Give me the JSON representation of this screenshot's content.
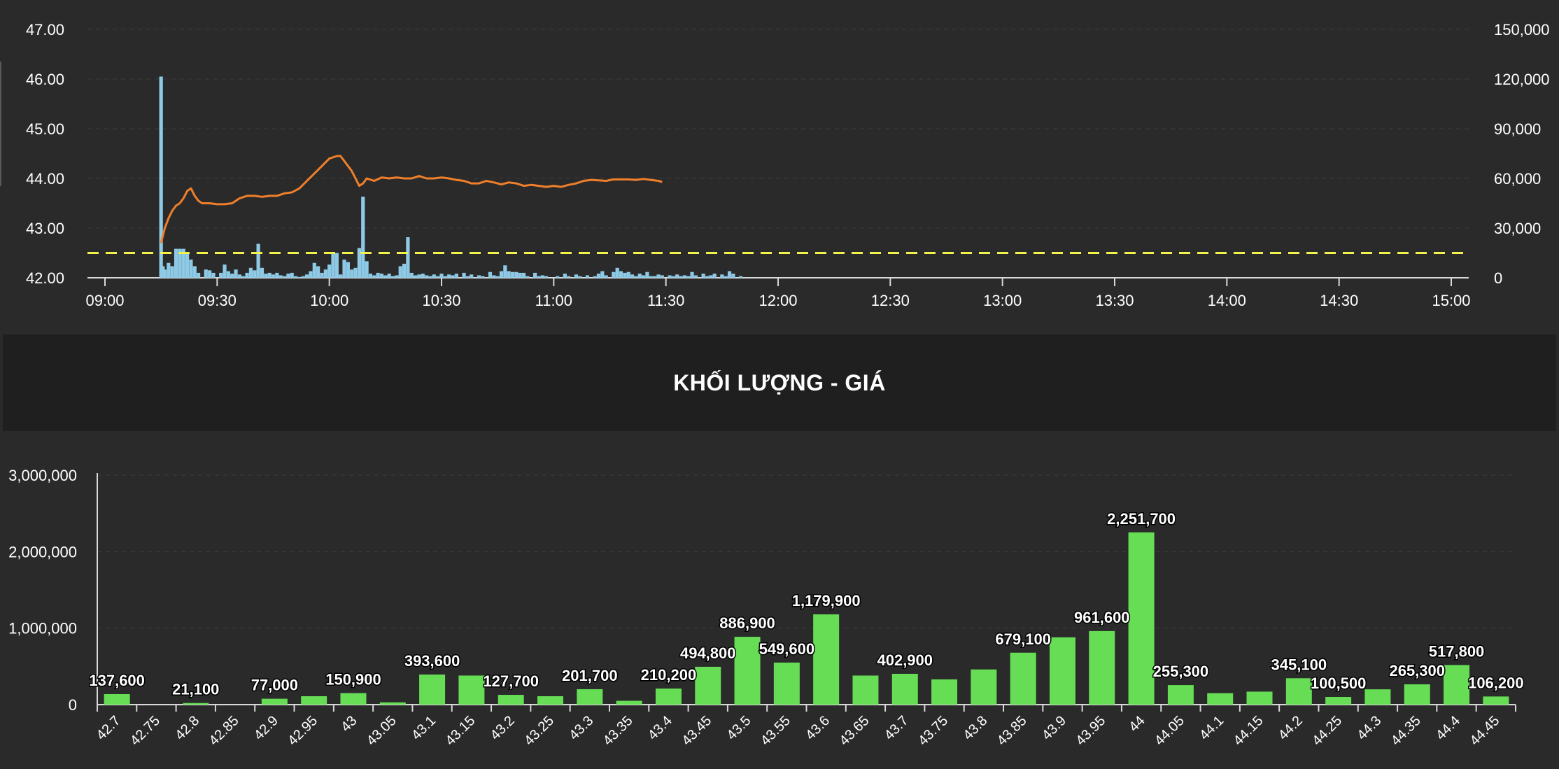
{
  "colors": {
    "background": "#2a2a2b",
    "band": "#1f1f20",
    "price_line": "#f07f2a",
    "volume_bar": "#8ecae6",
    "ref_line": "#f2f24a",
    "vp_bar": "#66dd55",
    "text": "#ffffff",
    "grid": "#3c3c3e"
  },
  "title": "KHỐI LƯỢNG - GIÁ",
  "chart_data": [
    {
      "type": "line",
      "name": "intraday",
      "left_axis": {
        "ticks": [
          "47.00",
          "46.00",
          "45.00",
          "44.00",
          "43.00",
          "42.00"
        ],
        "range": [
          42,
          47
        ]
      },
      "right_axis": {
        "ticks": [
          "150,000",
          "120,000",
          "90,000",
          "60,000",
          "30,000",
          "0"
        ],
        "range": [
          0,
          150000
        ]
      },
      "x_ticks": [
        "09:00",
        "09:30",
        "10:00",
        "10:30",
        "11:00",
        "11:30",
        "12:00",
        "12:30",
        "13:00",
        "13:30",
        "14:00",
        "14:30",
        "15:00"
      ],
      "reference_price": 42.5,
      "price_series": {
        "name": "price",
        "points": [
          [
            15,
            42.7
          ],
          [
            16,
            43.0
          ],
          [
            17,
            43.2
          ],
          [
            18,
            43.35
          ],
          [
            19,
            43.45
          ],
          [
            20,
            43.5
          ],
          [
            21,
            43.6
          ],
          [
            22,
            43.75
          ],
          [
            23,
            43.8
          ],
          [
            24,
            43.65
          ],
          [
            25,
            43.55
          ],
          [
            26,
            43.5
          ],
          [
            28,
            43.5
          ],
          [
            30,
            43.48
          ],
          [
            32,
            43.48
          ],
          [
            34,
            43.5
          ],
          [
            36,
            43.6
          ],
          [
            38,
            43.65
          ],
          [
            40,
            43.65
          ],
          [
            42,
            43.63
          ],
          [
            44,
            43.65
          ],
          [
            46,
            43.65
          ],
          [
            48,
            43.7
          ],
          [
            50,
            43.72
          ],
          [
            52,
            43.8
          ],
          [
            54,
            43.95
          ],
          [
            56,
            44.1
          ],
          [
            58,
            44.25
          ],
          [
            60,
            44.4
          ],
          [
            62,
            44.45
          ],
          [
            63,
            44.45
          ],
          [
            64,
            44.35
          ],
          [
            65,
            44.25
          ],
          [
            66,
            44.15
          ],
          [
            67,
            44.0
          ],
          [
            68,
            43.85
          ],
          [
            69,
            43.9
          ],
          [
            70,
            44.0
          ],
          [
            72,
            43.95
          ],
          [
            74,
            44.02
          ],
          [
            76,
            44.0
          ],
          [
            78,
            44.02
          ],
          [
            80,
            44.0
          ],
          [
            82,
            44.0
          ],
          [
            84,
            44.05
          ],
          [
            86,
            44.0
          ],
          [
            88,
            44.0
          ],
          [
            90,
            44.02
          ],
          [
            92,
            44.0
          ],
          [
            94,
            43.97
          ],
          [
            96,
            43.95
          ],
          [
            98,
            43.9
          ],
          [
            100,
            43.9
          ],
          [
            102,
            43.95
          ],
          [
            104,
            43.92
          ],
          [
            106,
            43.88
          ],
          [
            108,
            43.92
          ],
          [
            110,
            43.9
          ],
          [
            112,
            43.85
          ],
          [
            114,
            43.87
          ],
          [
            116,
            43.85
          ],
          [
            118,
            43.83
          ],
          [
            120,
            43.85
          ],
          [
            122,
            43.83
          ],
          [
            124,
            43.87
          ],
          [
            126,
            43.9
          ],
          [
            128,
            43.95
          ],
          [
            130,
            43.97
          ],
          [
            132,
            43.96
          ],
          [
            134,
            43.95
          ],
          [
            136,
            43.98
          ],
          [
            138,
            43.98
          ],
          [
            140,
            43.98
          ],
          [
            142,
            43.97
          ],
          [
            144,
            43.99
          ],
          [
            146,
            43.97
          ],
          [
            148,
            43.95
          ],
          [
            149,
            43.93
          ]
        ]
      },
      "volume_series": {
        "name": "volume",
        "points": [
          [
            15,
            121500
          ],
          [
            15.5,
            7000
          ],
          [
            16,
            5000
          ],
          [
            17,
            9000
          ],
          [
            18,
            7000
          ],
          [
            19,
            17500
          ],
          [
            20,
            17500
          ],
          [
            21,
            17500
          ],
          [
            22,
            14500
          ],
          [
            23,
            11000
          ],
          [
            24,
            7000
          ],
          [
            25,
            3000
          ],
          [
            27,
            5000
          ],
          [
            28,
            4500
          ],
          [
            29,
            3000
          ],
          [
            31,
            3000
          ],
          [
            32,
            8000
          ],
          [
            33,
            4000
          ],
          [
            34,
            2500
          ],
          [
            35,
            5000
          ],
          [
            36,
            2000
          ],
          [
            37,
            1000
          ],
          [
            38,
            3000
          ],
          [
            39,
            6000
          ],
          [
            40,
            4500
          ],
          [
            41,
            20500
          ],
          [
            42,
            6000
          ],
          [
            43,
            2500
          ],
          [
            44,
            3000
          ],
          [
            45,
            2000
          ],
          [
            46,
            3000
          ],
          [
            47,
            1500
          ],
          [
            48,
            1000
          ],
          [
            49,
            2500
          ],
          [
            50,
            3000
          ],
          [
            51,
            1000
          ],
          [
            52,
            500
          ],
          [
            53,
            1000
          ],
          [
            54,
            2000
          ],
          [
            55,
            4000
          ],
          [
            56,
            9000
          ],
          [
            57,
            7000
          ],
          [
            58,
            3000
          ],
          [
            59,
            5000
          ],
          [
            60,
            8000
          ],
          [
            61,
            15000
          ],
          [
            62,
            15000
          ],
          [
            63,
            2000
          ],
          [
            64,
            11000
          ],
          [
            65,
            9500
          ],
          [
            66,
            5000
          ],
          [
            67,
            6000
          ],
          [
            68,
            18000
          ],
          [
            69,
            49000
          ],
          [
            70,
            10000
          ],
          [
            71,
            2500
          ],
          [
            72,
            1500
          ],
          [
            73,
            3000
          ],
          [
            74,
            2500
          ],
          [
            75,
            1500
          ],
          [
            76,
            2500
          ],
          [
            77,
            1000
          ],
          [
            78,
            1500
          ],
          [
            79,
            7000
          ],
          [
            80,
            8500
          ],
          [
            81,
            24500
          ],
          [
            82,
            3000
          ],
          [
            83,
            1500
          ],
          [
            84,
            2000
          ],
          [
            85,
            2500
          ],
          [
            86,
            1500
          ],
          [
            87,
            1000
          ],
          [
            88,
            2000
          ],
          [
            89,
            1000
          ],
          [
            90,
            2500
          ],
          [
            91,
            1000
          ],
          [
            92,
            2000
          ],
          [
            93,
            1500
          ],
          [
            94,
            2500
          ],
          [
            96,
            3000
          ],
          [
            97,
            1000
          ],
          [
            98,
            2000
          ],
          [
            100,
            1500
          ],
          [
            101,
            1000
          ],
          [
            103,
            3500
          ],
          [
            104,
            1500
          ],
          [
            105,
            1000
          ],
          [
            106,
            4000
          ],
          [
            107,
            7500
          ],
          [
            108,
            4000
          ],
          [
            109,
            3500
          ],
          [
            110,
            3500
          ],
          [
            111,
            3000
          ],
          [
            112,
            3000
          ],
          [
            113,
            1000
          ],
          [
            115,
            3000
          ],
          [
            116,
            1000
          ],
          [
            117,
            1500
          ],
          [
            118,
            1000
          ],
          [
            121,
            1000
          ],
          [
            123,
            2500
          ],
          [
            124,
            1000
          ],
          [
            126,
            2000
          ],
          [
            127,
            1000
          ],
          [
            129,
            1500
          ],
          [
            131,
            1000
          ],
          [
            132,
            2500
          ],
          [
            133,
            4000
          ],
          [
            134,
            1500
          ],
          [
            136,
            3500
          ],
          [
            137,
            6000
          ],
          [
            138,
            4000
          ],
          [
            139,
            3000
          ],
          [
            140,
            3500
          ],
          [
            141,
            2000
          ],
          [
            142,
            1000
          ],
          [
            143,
            2500
          ],
          [
            144,
            1500
          ],
          [
            145,
            3500
          ],
          [
            146,
            1000
          ],
          [
            147,
            1000
          ],
          [
            148,
            2000
          ],
          [
            149,
            1500
          ],
          [
            151,
            1500
          ],
          [
            152,
            1000
          ],
          [
            153,
            2000
          ],
          [
            154,
            1000
          ],
          [
            155,
            1500
          ],
          [
            156,
            1000
          ],
          [
            157,
            3500
          ],
          [
            158,
            1500
          ],
          [
            160,
            2500
          ],
          [
            161,
            1000
          ],
          [
            162,
            1500
          ],
          [
            163,
            2500
          ],
          [
            165,
            2000
          ],
          [
            166,
            1000
          ],
          [
            167,
            4000
          ],
          [
            168,
            2500
          ],
          [
            170,
            1000
          ]
        ]
      }
    },
    {
      "type": "bar",
      "name": "volume_by_price",
      "y_ticks": [
        "3,000,000",
        "2,000,000",
        "1,000,000",
        "0"
      ],
      "ylim": [
        0,
        3000000
      ],
      "categories": [
        "42.7",
        "42.75",
        "42.8",
        "42.85",
        "42.9",
        "42.95",
        "43",
        "43.05",
        "43.1",
        "43.15",
        "43.2",
        "43.25",
        "43.3",
        "43.35",
        "43.4",
        "43.45",
        "43.5",
        "43.55",
        "43.6",
        "43.65",
        "43.7",
        "43.75",
        "43.8",
        "43.85",
        "43.9",
        "43.95",
        "44",
        "44.05",
        "44.1",
        "44.15",
        "44.2",
        "44.25",
        "44.3",
        "44.35",
        "44.4",
        "44.45"
      ],
      "values": [
        137600,
        0,
        21100,
        0,
        77000,
        110000,
        150900,
        30000,
        393600,
        380000,
        127700,
        110000,
        201700,
        50000,
        210200,
        494800,
        886900,
        549600,
        1179900,
        380000,
        402900,
        330000,
        460000,
        679100,
        880000,
        961600,
        2251700,
        255300,
        150000,
        170000,
        345100,
        100500,
        200000,
        265300,
        517800,
        106200
      ],
      "labels": [
        "137,600",
        "",
        "21,100",
        "",
        "77,000",
        "",
        "150,900",
        "",
        "393,600",
        "",
        "127,700",
        "",
        "201,700",
        "",
        "210,200",
        "494,800",
        "886,900",
        "549,600",
        "1,179,900",
        "",
        "402,900",
        "",
        "",
        "679,100",
        "",
        "961,600",
        "2,251,700",
        "255,300",
        "",
        "",
        "345,100",
        "100,500",
        "",
        "265,300",
        "517,800",
        "106,200"
      ]
    }
  ]
}
